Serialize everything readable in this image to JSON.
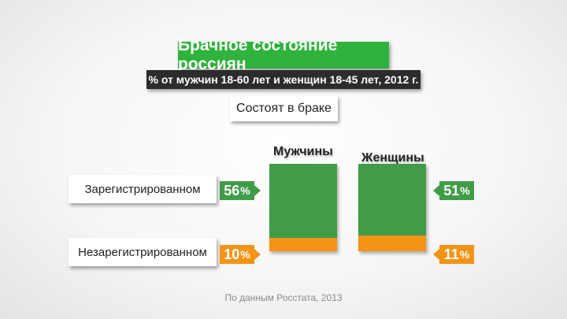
{
  "title": "Брачное состояние россиян",
  "subtitle": "% от мужчин 18-60 лет и женщин 18-45 лет, 2012 г.",
  "status_label": "Состоят в браке",
  "source": "По данным Росстата, 2013",
  "colors": {
    "registered": "#419c47",
    "unregistered": "#f39417",
    "title_bg": "#2fb33c"
  },
  "chart_data": {
    "type": "bar",
    "stacked": true,
    "title": "Брачное состояние россиян",
    "subtitle": "% от мужчин 18-60 лет и женщин 18-45 лет, 2012 г.",
    "group_label": "Состоят в браке",
    "categories": [
      "Мужчины",
      "Женщины"
    ],
    "series": [
      {
        "name": "Зарегистрированном",
        "values": [
          56,
          51
        ]
      },
      {
        "name": "Незарегистрированном",
        "values": [
          10,
          11
        ]
      }
    ],
    "value_labels": {
      "men_registered": "56",
      "men_unregistered": "10",
      "women_registered": "51",
      "women_unregistered": "11"
    },
    "unit": "%"
  }
}
